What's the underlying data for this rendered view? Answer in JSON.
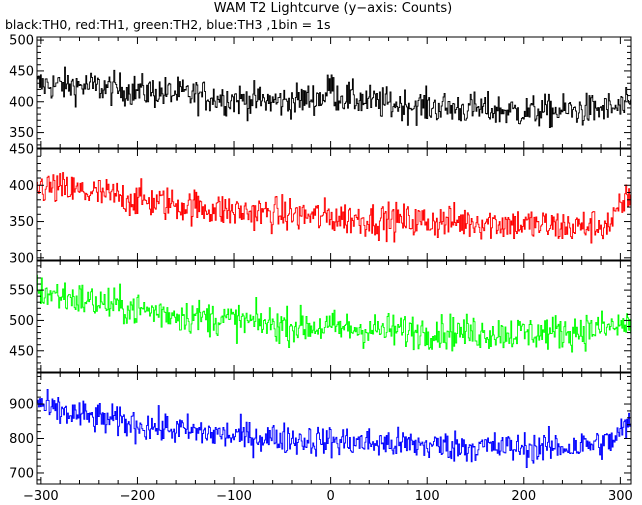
{
  "chart_data": {
    "type": "line",
    "title": "WAM T2 Lightcurve (y−axis: Counts)",
    "subtitle": "black:TH0, red:TH1, green:TH2, blue:TH3 ,1bin = 1s",
    "xlabel": "",
    "ylabel": "",
    "xlim": [
      -304,
      311
    ],
    "x_ticks": [
      -300,
      -200,
      -100,
      0,
      100,
      200,
      300
    ],
    "x_tick_labels": [
      "−300",
      "−200",
      "−100",
      "0",
      "100",
      "200",
      "300"
    ],
    "grid": false,
    "bin_seconds": 1,
    "panels": [
      {
        "name": "TH0",
        "color": "#000000",
        "ylim": [
          325,
          505
        ],
        "y_ticks": [
          350,
          400,
          450,
          500
        ],
        "y_tick_labels": [
          "350",
          "400",
          "450",
          "500"
        ],
        "trend": [
          [
            -304,
            428
          ],
          [
            -250,
            425
          ],
          [
            -200,
            418
          ],
          [
            -150,
            412
          ],
          [
            -100,
            404
          ],
          [
            -50,
            400
          ],
          [
            -5,
            408
          ],
          [
            0,
            432
          ],
          [
            5,
            410
          ],
          [
            50,
            398
          ],
          [
            100,
            392
          ],
          [
            150,
            388
          ],
          [
            200,
            384
          ],
          [
            250,
            385
          ],
          [
            300,
            390
          ],
          [
            311,
            392
          ]
        ],
        "noise_amplitude": 22
      },
      {
        "name": "TH1",
        "color": "#ff0000",
        "ylim": [
          297,
          450
        ],
        "y_ticks": [
          300,
          350,
          400,
          450
        ],
        "y_tick_labels": [
          "300",
          "350",
          "400",
          "450"
        ],
        "trend": [
          [
            -304,
            398
          ],
          [
            -250,
            390
          ],
          [
            -200,
            380
          ],
          [
            -150,
            372
          ],
          [
            -100,
            364
          ],
          [
            -50,
            360
          ],
          [
            0,
            356
          ],
          [
            50,
            352
          ],
          [
            100,
            350
          ],
          [
            150,
            350
          ],
          [
            200,
            346
          ],
          [
            250,
            342
          ],
          [
            290,
            346
          ],
          [
            305,
            378
          ],
          [
            311,
            395
          ]
        ],
        "noise_amplitude": 20
      },
      {
        "name": "TH2",
        "color": "#00ff00",
        "ylim": [
          415,
          598
        ],
        "y_ticks": [
          450,
          500,
          550
        ],
        "y_tick_labels": [
          "450",
          "500",
          "550"
        ],
        "trend": [
          [
            -304,
            548
          ],
          [
            -250,
            532
          ],
          [
            -200,
            518
          ],
          [
            -150,
            508
          ],
          [
            -100,
            500
          ],
          [
            -50,
            492
          ],
          [
            0,
            488
          ],
          [
            50,
            484
          ],
          [
            100,
            482
          ],
          [
            150,
            480
          ],
          [
            200,
            479
          ],
          [
            250,
            482
          ],
          [
            300,
            490
          ],
          [
            311,
            495
          ]
        ],
        "noise_amplitude": 24
      },
      {
        "name": "TH3",
        "color": "#0000ff",
        "ylim": [
          668,
          990
        ],
        "y_ticks": [
          700,
          800,
          900
        ],
        "y_tick_labels": [
          "700",
          "800",
          "900"
        ],
        "trend": [
          [
            -304,
            905
          ],
          [
            -290,
            882
          ],
          [
            -250,
            862
          ],
          [
            -200,
            840
          ],
          [
            -150,
            822
          ],
          [
            -100,
            808
          ],
          [
            -50,
            800
          ],
          [
            0,
            792
          ],
          [
            50,
            786
          ],
          [
            100,
            780
          ],
          [
            150,
            776
          ],
          [
            200,
            772
          ],
          [
            250,
            776
          ],
          [
            290,
            790
          ],
          [
            305,
            830
          ],
          [
            311,
            852
          ]
        ],
        "noise_amplitude": 38
      }
    ]
  }
}
